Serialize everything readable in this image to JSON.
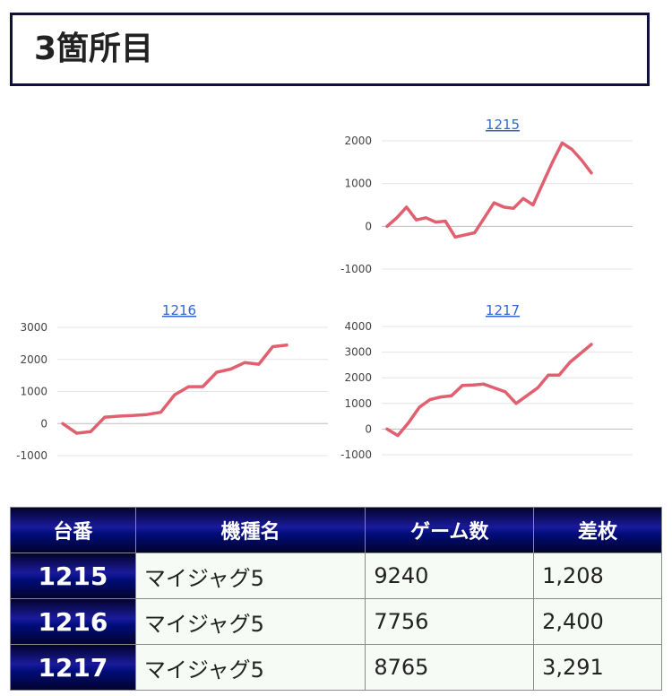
{
  "heading": {
    "title": "3箇所目"
  },
  "colors": {
    "series": "#e06070",
    "header_navy": "#000c7a"
  },
  "chart_data": [
    {
      "type": "line",
      "title": "1215",
      "ylim": [
        -1000,
        2000
      ],
      "yticks": [
        2000,
        1000,
        0,
        -1000
      ],
      "grid": true,
      "x": [
        0,
        1,
        2,
        3,
        4,
        5,
        6,
        7,
        8,
        9,
        10,
        11,
        12,
        13,
        14,
        15,
        16,
        17,
        18,
        19,
        20,
        21
      ],
      "series": [
        {
          "values": [
            0,
            200,
            450,
            150,
            200,
            100,
            120,
            -250,
            -200,
            -150,
            200,
            550,
            450,
            420,
            650,
            500,
            1000,
            1500,
            1950,
            1800,
            1550,
            1250
          ]
        }
      ]
    },
    {
      "type": "line",
      "title": "1216",
      "ylim": [
        -1000,
        3000
      ],
      "yticks": [
        3000,
        2000,
        1000,
        0,
        -1000
      ],
      "grid": true,
      "x": [
        0,
        1,
        2,
        3,
        4,
        5,
        6,
        7,
        8,
        9,
        10,
        11,
        12,
        13,
        14,
        15,
        16
      ],
      "series": [
        {
          "values": [
            0,
            -300,
            -250,
            200,
            230,
            250,
            280,
            350,
            900,
            1150,
            1150,
            1600,
            1700,
            1900,
            1850,
            2400,
            2450
          ]
        }
      ]
    },
    {
      "type": "line",
      "title": "1217",
      "ylim": [
        -1000,
        4000
      ],
      "yticks": [
        4000,
        3000,
        2000,
        1000,
        0,
        -1000
      ],
      "grid": true,
      "x": [
        0,
        1,
        2,
        3,
        4,
        5,
        6,
        7,
        8,
        9,
        10,
        11,
        12,
        13,
        14,
        15,
        16,
        17,
        18,
        19
      ],
      "series": [
        {
          "values": [
            0,
            -250,
            250,
            850,
            1150,
            1250,
            1300,
            1700,
            1720,
            1750,
            1600,
            1450,
            1000,
            1300,
            1600,
            2100,
            2100,
            2600,
            2950,
            3300
          ]
        }
      ]
    }
  ],
  "table": {
    "headers": [
      "台番",
      "機種名",
      "ゲーム数",
      "差枚"
    ],
    "rows": [
      {
        "number": "1215",
        "machine": "マイジャグ5",
        "games": "9240",
        "diff": "1,208"
      },
      {
        "number": "1216",
        "machine": "マイジャグ5",
        "games": "7756",
        "diff": "2,400"
      },
      {
        "number": "1217",
        "machine": "マイジャグ5",
        "games": "8765",
        "diff": "3,291"
      }
    ]
  }
}
